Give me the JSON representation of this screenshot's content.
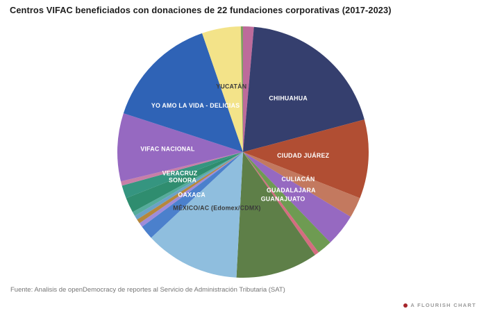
{
  "title": "Centros VIFAC beneficiados con donaciones de 22 fundaciones corporativas (2017-2023)",
  "footer": {
    "source": "Fuente: Analisis de openDemocracy de reportes al Servicio de Administración Tributaria (SAT)"
  },
  "attribution": {
    "label": "A FLOURISH CHART",
    "dot_color": "#a6252b"
  },
  "chart_data": {
    "type": "pie",
    "title": "Centros VIFAC beneficiados con donaciones de 22 fundaciones corporativas (2017-2023)",
    "legend_position": "none",
    "value_unit": "share of donations, estimated from slice angles (degrees of 360)",
    "slices": [
      {
        "label": "",
        "degrees": 5,
        "est_percent": 1.4,
        "color": "#BD6B9B"
      },
      {
        "label": "CHIHUAHUA",
        "degrees": 70,
        "est_percent": 19.4,
        "color": "#353F6E",
        "label_color": "#FFFFFF",
        "label_r": 0.56
      },
      {
        "label": "CIUDAD JUÁREZ",
        "degrees": 36.5,
        "est_percent": 10.1,
        "color": "#B14E33",
        "label_color": "#FFFFFF",
        "label_r": 0.48
      },
      {
        "label": "CULIACÁN",
        "degrees": 9.5,
        "est_percent": 2.6,
        "color": "#C3795F",
        "label_color": "#FFFFFF",
        "label_r": 0.49
      },
      {
        "label": "GUADALAJARA",
        "degrees": 15,
        "est_percent": 4.2,
        "color": "#9669C1",
        "label_color": "#FFFFFF",
        "label_r": 0.49
      },
      {
        "label": "GUANAJUATO",
        "degrees": 7,
        "est_percent": 1.9,
        "color": "#6E9B52",
        "label_color": "#FFFFFF",
        "label_r": 0.49
      },
      {
        "label": "",
        "degrees": 2,
        "est_percent": 0.6,
        "color": "#D56C80"
      },
      {
        "label": "",
        "degrees": 38,
        "est_percent": 10.6,
        "color": "#5E7F48"
      },
      {
        "label": "MÉXICO/AC (Edomex/CDMX)",
        "degrees": 44,
        "est_percent": 12.2,
        "color": "#8FBEDE",
        "label_color": "#3A3A3A",
        "label_r": 0.49
      },
      {
        "label": "OAXACA",
        "degrees": 6.5,
        "est_percent": 1.8,
        "color": "#4B80CC",
        "label_color": "#FFFFFF"
      },
      {
        "label": "",
        "degrees": 2,
        "est_percent": 0.6,
        "color": "#9E8CD9"
      },
      {
        "label": "",
        "degrees": 2,
        "est_percent": 0.6,
        "color": "#B5873C"
      },
      {
        "label": "",
        "degrees": 2,
        "est_percent": 0.6,
        "color": "#6BA2C6"
      },
      {
        "label": "",
        "degrees": 2,
        "est_percent": 0.6,
        "color": "#55AC9B"
      },
      {
        "label": "SONORA",
        "degrees": 7,
        "est_percent": 1.9,
        "color": "#2F8D6F",
        "label_color": "#FFFFFF"
      },
      {
        "label": "VERACRUZ",
        "degrees": 6,
        "est_percent": 1.7,
        "color": "#359580",
        "label_color": "#FFFFFF"
      },
      {
        "label": "",
        "degrees": 2,
        "est_percent": 0.6,
        "color": "#C77FA8"
      },
      {
        "label": "VIFAC NACIONAL",
        "degrees": 31.5,
        "est_percent": 8.8,
        "color": "#9669C1",
        "label_color": "#FFFFFF",
        "label_r": 0.6
      },
      {
        "label": "YO AMO LA VIDA - DELICIAS",
        "degrees": 53,
        "est_percent": 14.7,
        "color": "#2F63B6",
        "label_color": "#FFFFFF"
      },
      {
        "label": "YUCATÁN",
        "degrees": 18,
        "est_percent": 5.0,
        "color": "#F3E389",
        "label_color": "#3A3A3A"
      },
      {
        "label": "",
        "degrees": 1,
        "est_percent": 0.3,
        "color": "#7FA15F"
      }
    ]
  }
}
